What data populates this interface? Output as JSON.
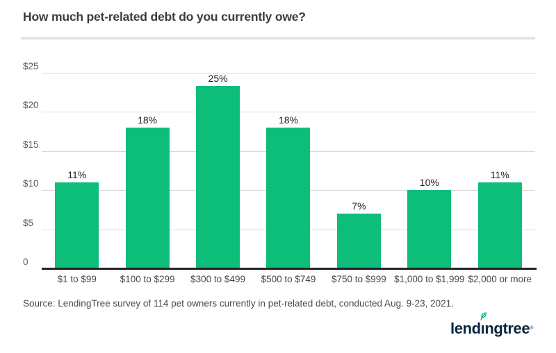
{
  "header": {
    "title": "How much pet-related debt do you currently owe?"
  },
  "chart_data": {
    "type": "bar",
    "title": "How much pet-related debt do you currently owe?",
    "categories": [
      "$1 to $99",
      "$100 to $299",
      "$300 to $499",
      "$500 to $749",
      "$750 to $999",
      "$1,000 to $1,999",
      "$2,000 or more"
    ],
    "values": [
      11,
      18,
      25,
      18,
      7,
      10,
      11
    ],
    "value_labels": [
      "11%",
      "18%",
      "25%",
      "18%",
      "7%",
      "10%",
      "11%"
    ],
    "xlabel": "",
    "ylabel": "",
    "ylim": [
      0,
      25
    ],
    "y_ticks": [
      {
        "label": "$25",
        "value": 25
      },
      {
        "label": "$20",
        "value": 20
      },
      {
        "label": "$15",
        "value": 15
      },
      {
        "label": "$10",
        "value": 10
      },
      {
        "label": "$5",
        "value": 5
      },
      {
        "label": "0",
        "value": 0
      }
    ],
    "grid": true,
    "legend": false,
    "bar_color": "#0dbd7a"
  },
  "footer": {
    "source": "Source: LendingTree survey of 114 pet owners currently in pet-related debt, conducted Aug. 9-23, 2021.",
    "logo": {
      "part_before_i": "lend",
      "dotless_i": "ı",
      "part_after_i": "ngtree",
      "trademark": "®"
    }
  },
  "colors": {
    "bar": "#0dbd7a",
    "gridline": "#d9d9d9",
    "axis_line": "#222222",
    "title_text": "#3b3b3b",
    "y_tick_text": "#55585b",
    "x_tick_text": "#40484c",
    "value_label_text": "#1c1c1c",
    "source_text": "#4a4a4a",
    "divider": "#e3e3e3",
    "logo_navy": "#0b2540",
    "leaf_green": "#00b964"
  }
}
